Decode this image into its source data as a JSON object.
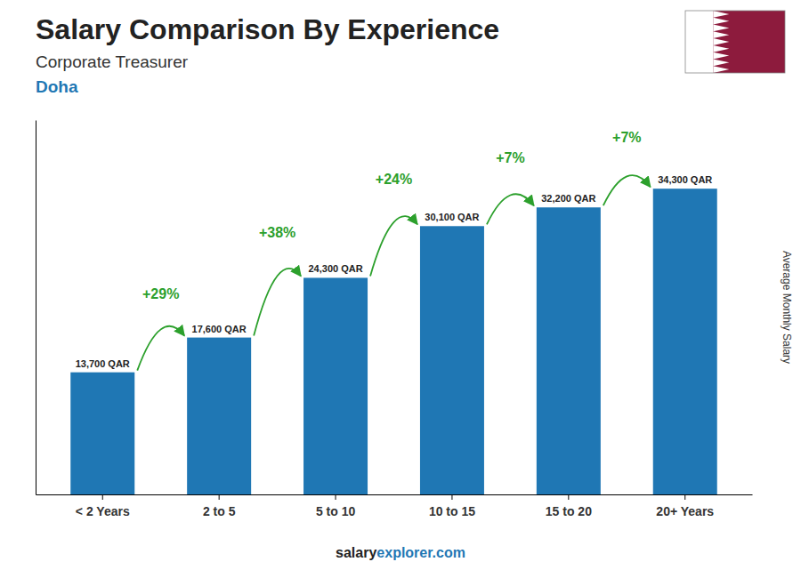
{
  "chart_data": {
    "type": "bar",
    "title": "Salary Comparison By Experience",
    "subtitle": "Corporate Treasurer",
    "location": "Doha",
    "ylabel": "Average Monthly Salary",
    "categories": [
      "< 2 Years",
      "2 to 5",
      "5 to 10",
      "10 to 15",
      "15 to 20",
      "20+ Years"
    ],
    "values": [
      13700,
      17600,
      24300,
      30100,
      32200,
      34300
    ],
    "value_labels": [
      "13,700 QAR",
      "17,600 QAR",
      "24,300 QAR",
      "30,100 QAR",
      "32,200 QAR",
      "34,300 QAR"
    ],
    "data_labels": true,
    "annotations": [
      "+29%",
      "+38%",
      "+24%",
      "+7%",
      "+7%"
    ],
    "source": [
      "salary",
      "explorer.com"
    ],
    "ylim": [
      0,
      42000
    ],
    "tick_labels": "x",
    "grid": false
  }
}
